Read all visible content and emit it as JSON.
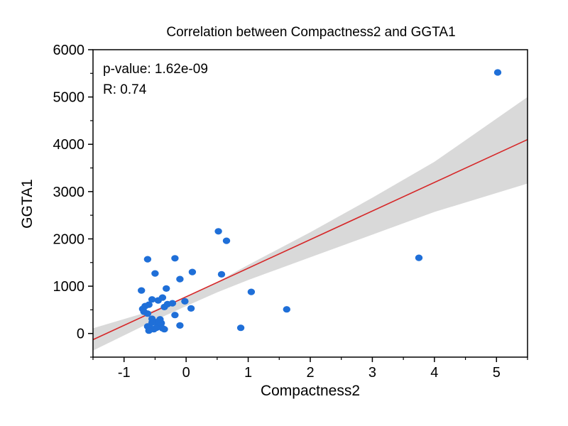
{
  "chart_data": {
    "type": "scatter",
    "title": "Correlation between Compactness2 and GGTA1",
    "xlabel": "Compactness2",
    "ylabel": "GGTA1",
    "xlim": [
      -1.5,
      5.5
    ],
    "ylim": [
      -500,
      6000
    ],
    "xticks": [
      -1,
      0,
      1,
      2,
      3,
      4,
      5
    ],
    "yticks": [
      0,
      1000,
      2000,
      3000,
      4000,
      5000,
      6000
    ],
    "xtick_labels": [
      "-1",
      "0",
      "1",
      "2",
      "3",
      "4",
      "5"
    ],
    "ytick_labels": [
      "0",
      "1000",
      "2000",
      "3000",
      "4000",
      "5000",
      "6000"
    ],
    "annotations": {
      "pvalue": "p-value: 1.62e-09",
      "r": "R: 0.74"
    },
    "point_color": "#1f6fd8",
    "fit_color": "#d62728",
    "band_color": "#d9d9d9",
    "fit_line": {
      "x": [
        -1.5,
        5.5
      ],
      "y": [
        -130,
        4100
      ]
    },
    "confidence_band": {
      "x": [
        -1.5,
        -0.5,
        0.0,
        0.5,
        1.0,
        2.0,
        3.0,
        4.0,
        5.5
      ],
      "lower": [
        -360,
        280,
        580,
        870,
        1130,
        1610,
        2090,
        2570,
        3170
      ],
      "upper": [
        110,
        500,
        780,
        1090,
        1450,
        2140,
        2870,
        3630,
        5000
      ]
    },
    "points": {
      "x": [
        5.02,
        3.75,
        1.62,
        0.88,
        1.05,
        0.52,
        0.65,
        0.57,
        -0.18,
        -0.62,
        -0.5,
        -0.72,
        -0.66,
        -0.6,
        -0.55,
        -0.45,
        -0.38,
        -0.3,
        -0.22,
        -0.7,
        -0.62,
        -0.55,
        -0.48,
        -0.4,
        -0.35,
        -0.62,
        -0.58,
        -0.52,
        -0.45,
        -0.42,
        -0.38,
        -0.35,
        -0.1,
        -0.02,
        0.08,
        0.1,
        -0.1,
        -0.18,
        -0.32,
        -0.42,
        -0.6,
        -0.68,
        -0.55,
        -0.48
      ],
      "y": [
        5520,
        1600,
        510,
        120,
        880,
        2160,
        1960,
        1250,
        1590,
        1570,
        1270,
        910,
        580,
        610,
        720,
        700,
        760,
        620,
        640,
        520,
        420,
        310,
        240,
        220,
        560,
        150,
        120,
        90,
        140,
        170,
        110,
        90,
        1150,
        680,
        530,
        1300,
        170,
        390,
        950,
        300,
        60,
        460,
        230,
        120
      ]
    }
  }
}
